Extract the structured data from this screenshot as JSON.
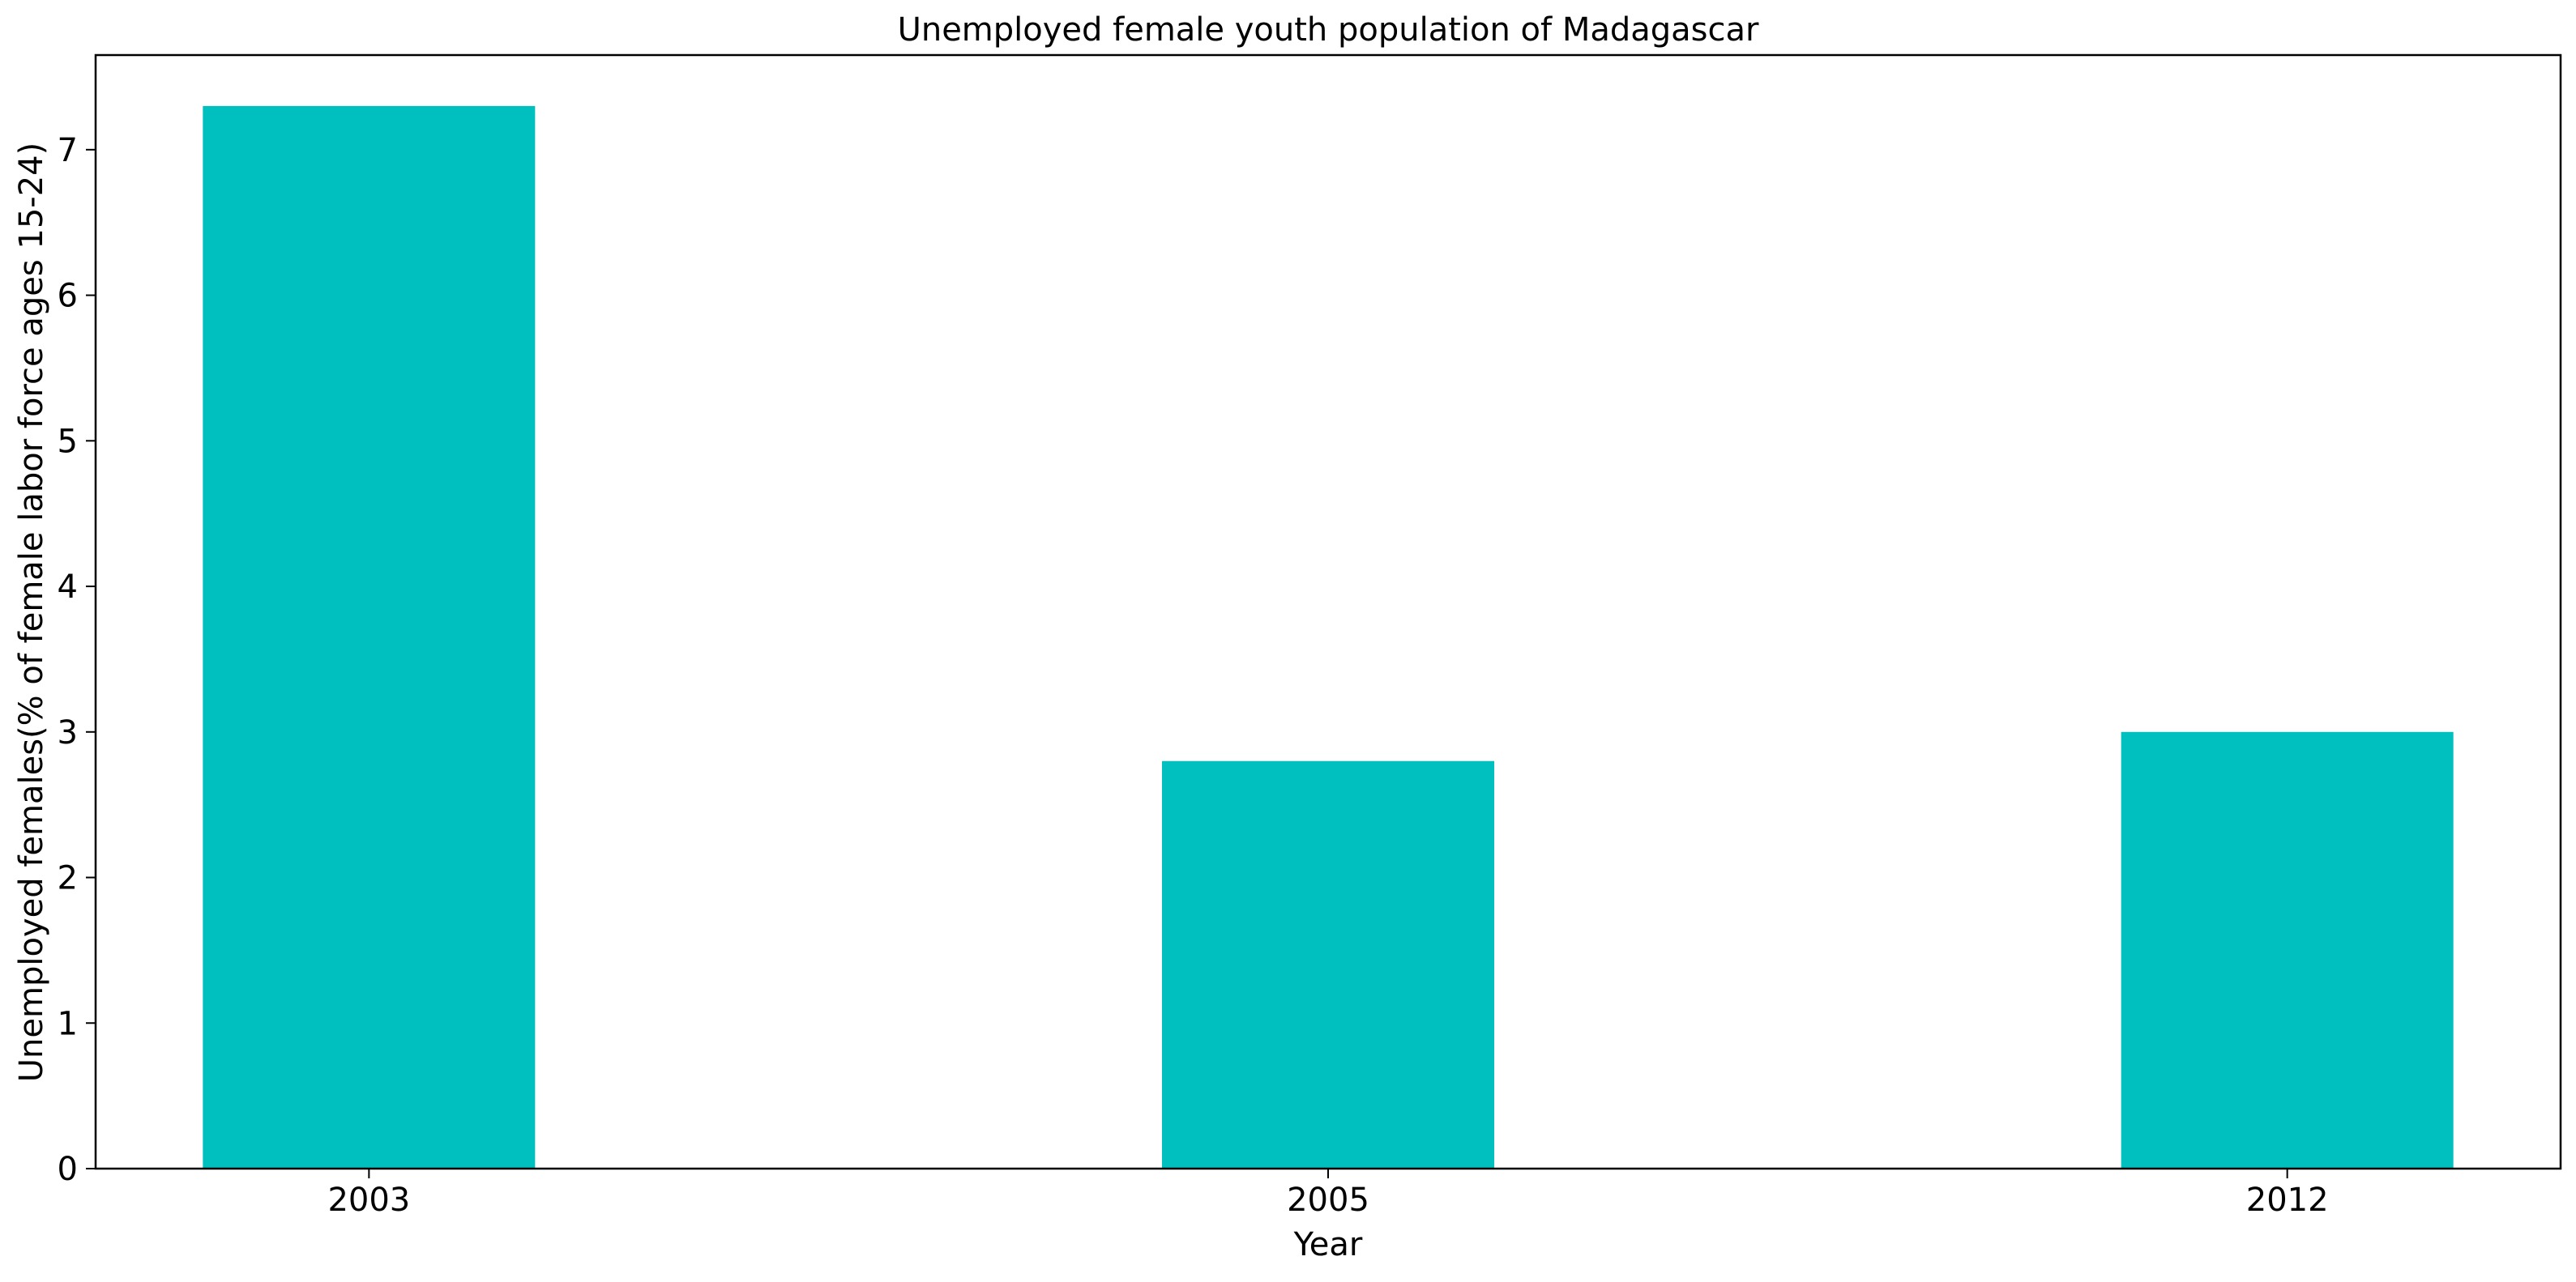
{
  "chart_data": {
    "type": "bar",
    "title": "Unemployed female youth population of Madagascar",
    "xlabel": "Year",
    "ylabel": "Unemployed females(% of female labor force ages 15-24)",
    "categories": [
      "2003",
      "2005",
      "2012"
    ],
    "values": [
      7.3,
      2.8,
      3.0
    ],
    "ylim": [
      0,
      7.65
    ],
    "yticks": [
      0,
      1,
      2,
      3,
      4,
      5,
      6,
      7
    ],
    "bar_color": "#00bfbf",
    "grid": false,
    "legend": "none"
  }
}
